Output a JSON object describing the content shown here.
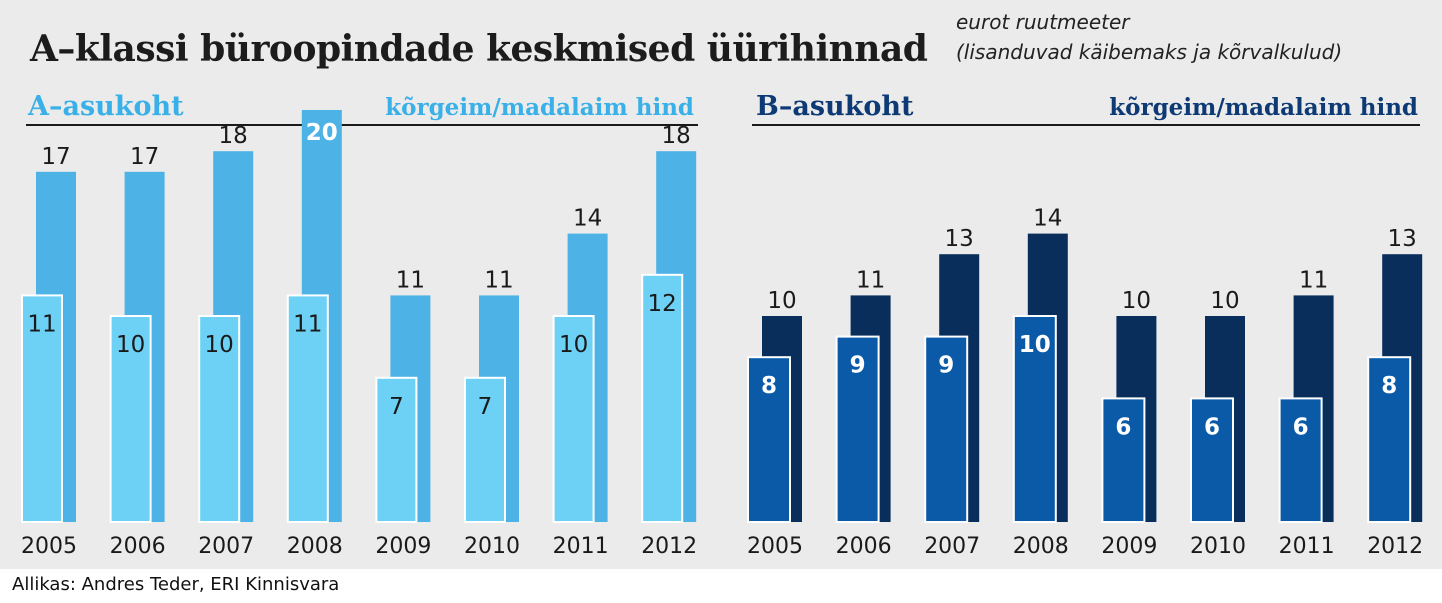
{
  "title": "A–klassi büroopindade keskmised üürihinnad",
  "unit_line1": "eurot ruutmeeter",
  "unit_line2": "(lisanduvad käibemaks ja kõrvalkulud)",
  "source": "Allikas: Andres Teder, ERI Kinnisvara",
  "colors": {
    "a_high": "#4db3e6",
    "a_low": "#6dd0f5",
    "a_heading": "#3ab0e8",
    "b_high": "#0a2e5c",
    "b_low": "#0a5aa8",
    "b_heading": "#0d3a75",
    "background": "#ebebeb"
  },
  "chart_data": [
    {
      "type": "bar",
      "panel": "A",
      "title": "A–asukoht",
      "legend": "kõrgeim/madalaim hind",
      "categories": [
        "2005",
        "2006",
        "2007",
        "2008",
        "2009",
        "2010",
        "2011",
        "2012"
      ],
      "series": [
        {
          "name": "kõrgeim",
          "values": [
            17,
            17,
            18,
            20,
            11,
            11,
            14,
            18
          ]
        },
        {
          "name": "madalaim",
          "values": [
            11,
            10,
            10,
            11,
            7,
            7,
            10,
            12
          ]
        }
      ],
      "ylim": [
        0,
        20
      ]
    },
    {
      "type": "bar",
      "panel": "B",
      "title": "B–asukoht",
      "legend": "kõrgeim/madalaim hind",
      "categories": [
        "2005",
        "2006",
        "2007",
        "2008",
        "2009",
        "2010",
        "2011",
        "2012"
      ],
      "series": [
        {
          "name": "kõrgeim",
          "values": [
            10,
            11,
            13,
            14,
            10,
            10,
            11,
            13
          ]
        },
        {
          "name": "madalaim",
          "values": [
            8,
            9,
            9,
            10,
            6,
            6,
            6,
            8
          ]
        }
      ],
      "ylim": [
        0,
        20
      ]
    }
  ]
}
